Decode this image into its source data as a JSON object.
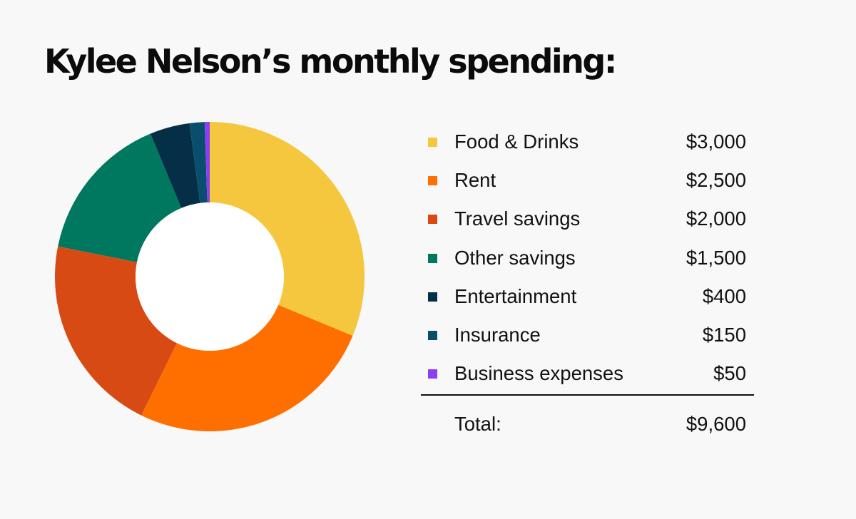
{
  "title": "Kylee Nelson’s monthly spending:",
  "chart_data": {
    "type": "pie",
    "title": "Kylee Nelson’s monthly spending:",
    "unit": "$",
    "categories": [
      "Food & Drinks",
      "Rent",
      "Travel savings",
      "Other savings",
      "Entertainment",
      "Insurance",
      "Business expenses"
    ],
    "values": [
      3000,
      2500,
      2000,
      1500,
      400,
      150,
      50
    ],
    "value_labels": [
      "$3,000",
      "$2,500",
      "$2,000",
      "$1,500",
      "$400",
      "$150",
      "$50"
    ],
    "colors": [
      "#f4c73e",
      "#ff6f00",
      "#d84a14",
      "#00775f",
      "#052f47",
      "#0a4e6e",
      "#8a3ff4"
    ],
    "legend_position": "right",
    "total_label": "Total:",
    "total_value": "$9,600"
  }
}
